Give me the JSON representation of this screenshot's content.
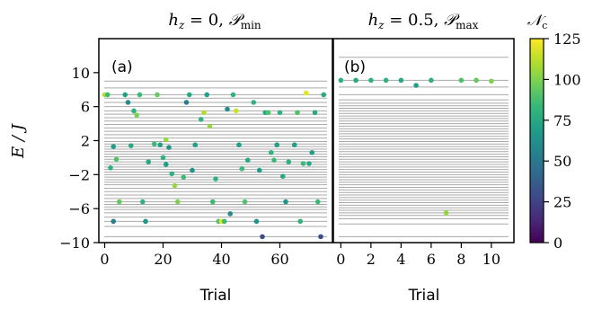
{
  "chart_data": [
    {
      "type": "scatter",
      "panel_label": "(a)",
      "title": "h_z = 0, 𝒫_min",
      "title_parts": {
        "h": "h",
        "z": "z",
        "eq": " = 0, ",
        "P": "𝒫",
        "sub": "min"
      },
      "xlabel": "Trial",
      "ylabel": "E / J",
      "xlim": [
        -2,
        78
      ],
      "ylim": [
        -10,
        14
      ],
      "xticks": [
        "0",
        "20",
        "40",
        "60"
      ],
      "yticks": [
        "10",
        "6",
        "2",
        "−2",
        "−6",
        "−10"
      ],
      "ytick_values": [
        10,
        6,
        2,
        -2,
        -6,
        -10
      ],
      "xtick_values": [
        0,
        20,
        40,
        60
      ],
      "levels": [
        -9.3,
        -8.1,
        -7.5,
        -7.0,
        -6.5,
        -6.1,
        -5.8,
        -5.5,
        -5.2,
        -4.8,
        -4.4,
        -4.0,
        -3.6,
        -3.2,
        -2.9,
        -2.6,
        -2.3,
        -2.0,
        -1.7,
        -1.4,
        -1.1,
        -0.8,
        -0.5,
        -0.2,
        0.1,
        0.4,
        0.7,
        1.0,
        1.3,
        1.6,
        1.9,
        2.3,
        2.7,
        3.1,
        3.5,
        3.9,
        4.3,
        4.7,
        5.1,
        5.5,
        6.0,
        6.5,
        7.0,
        7.4,
        8.2,
        9.0
      ],
      "points": [
        {
          "x": 0,
          "y": 7.4,
          "c": 110
        },
        {
          "x": 1,
          "y": 7.4,
          "c": 85
        },
        {
          "x": 2,
          "y": -1.2,
          "c": 80
        },
        {
          "x": 3,
          "y": 1.3,
          "c": 70
        },
        {
          "x": 3,
          "y": -7.5,
          "c": 55
        },
        {
          "x": 4,
          "y": -0.2,
          "c": 90
        },
        {
          "x": 5,
          "y": -5.2,
          "c": 95
        },
        {
          "x": 7,
          "y": 7.4,
          "c": 70
        },
        {
          "x": 8,
          "y": 6.5,
          "c": 60
        },
        {
          "x": 9,
          "y": 1.4,
          "c": 75
        },
        {
          "x": 10,
          "y": 5.5,
          "c": 80
        },
        {
          "x": 11,
          "y": 5.0,
          "c": 100
        },
        {
          "x": 12,
          "y": 7.4,
          "c": 85
        },
        {
          "x": 13,
          "y": -5.2,
          "c": 80
        },
        {
          "x": 14,
          "y": -7.5,
          "c": 65
        },
        {
          "x": 15,
          "y": -0.5,
          "c": 75
        },
        {
          "x": 17,
          "y": 1.6,
          "c": 85
        },
        {
          "x": 18,
          "y": 7.4,
          "c": 95
        },
        {
          "x": 19,
          "y": 1.5,
          "c": 70
        },
        {
          "x": 20,
          "y": 0.0,
          "c": 80
        },
        {
          "x": 21,
          "y": 2.1,
          "c": 105
        },
        {
          "x": 21,
          "y": -0.8,
          "c": 70
        },
        {
          "x": 22,
          "y": 1.2,
          "c": 65
        },
        {
          "x": 23,
          "y": -1.9,
          "c": 80
        },
        {
          "x": 24,
          "y": -3.3,
          "c": 105
        },
        {
          "x": 25,
          "y": -5.2,
          "c": 100
        },
        {
          "x": 27,
          "y": -2.3,
          "c": 85
        },
        {
          "x": 28,
          "y": 6.5,
          "c": 55
        },
        {
          "x": 29,
          "y": 7.4,
          "c": 75
        },
        {
          "x": 30,
          "y": -1.5,
          "c": 65
        },
        {
          "x": 31,
          "y": 1.5,
          "c": 70
        },
        {
          "x": 33,
          "y": 4.5,
          "c": 80
        },
        {
          "x": 34,
          "y": 5.3,
          "c": 110
        },
        {
          "x": 35,
          "y": 7.4,
          "c": 70
        },
        {
          "x": 36,
          "y": 3.7,
          "c": 105
        },
        {
          "x": 37,
          "y": -5.2,
          "c": 85
        },
        {
          "x": 38,
          "y": -2.5,
          "c": 80
        },
        {
          "x": 39,
          "y": -7.5,
          "c": 90
        },
        {
          "x": 40,
          "y": -7.5,
          "c": 120
        },
        {
          "x": 41,
          "y": -7.5,
          "c": 85
        },
        {
          "x": 42,
          "y": 5.7,
          "c": 60
        },
        {
          "x": 43,
          "y": -6.6,
          "c": 60
        },
        {
          "x": 44,
          "y": 7.4,
          "c": 80
        },
        {
          "x": 45,
          "y": 5.5,
          "c": 115
        },
        {
          "x": 46,
          "y": 1.5,
          "c": 70
        },
        {
          "x": 47,
          "y": -1.3,
          "c": 85
        },
        {
          "x": 48,
          "y": -5.2,
          "c": 90
        },
        {
          "x": 49,
          "y": -0.3,
          "c": 75
        },
        {
          "x": 51,
          "y": 6.5,
          "c": 80
        },
        {
          "x": 52,
          "y": -7.5,
          "c": 65
        },
        {
          "x": 53,
          "y": -1.5,
          "c": 70
        },
        {
          "x": 54,
          "y": -9.3,
          "c": 30
        },
        {
          "x": 55,
          "y": 5.3,
          "c": 75
        },
        {
          "x": 56,
          "y": 5.3,
          "c": 90
        },
        {
          "x": 57,
          "y": 0.6,
          "c": 80
        },
        {
          "x": 58,
          "y": -0.3,
          "c": 85
        },
        {
          "x": 59,
          "y": 1.5,
          "c": 70
        },
        {
          "x": 60,
          "y": 5.3,
          "c": 80
        },
        {
          "x": 61,
          "y": -2.2,
          "c": 75
        },
        {
          "x": 62,
          "y": -5.2,
          "c": 65
        },
        {
          "x": 63,
          "y": -0.5,
          "c": 80
        },
        {
          "x": 65,
          "y": 1.5,
          "c": 70
        },
        {
          "x": 66,
          "y": 5.3,
          "c": 90
        },
        {
          "x": 67,
          "y": -7.5,
          "c": 80
        },
        {
          "x": 68,
          "y": -0.7,
          "c": 85
        },
        {
          "x": 69,
          "y": 7.6,
          "c": 120
        },
        {
          "x": 70,
          "y": -0.7,
          "c": 75
        },
        {
          "x": 71,
          "y": 0.6,
          "c": 70
        },
        {
          "x": 72,
          "y": 5.3,
          "c": 75
        },
        {
          "x": 73,
          "y": -5.2,
          "c": 85
        },
        {
          "x": 74,
          "y": -9.3,
          "c": 30
        },
        {
          "x": 75,
          "y": 7.4,
          "c": 75
        }
      ]
    },
    {
      "type": "scatter",
      "panel_label": "(b)",
      "title": "h_z = 0.5, 𝒫_max",
      "title_parts": {
        "h": "h",
        "z": "z",
        "eq": " = 0.5, ",
        "P": "𝒫",
        "sub": "max"
      },
      "xlabel": "Trial",
      "xlim": [
        -0.5,
        11.5
      ],
      "ylim": [
        -10,
        14
      ],
      "xticks": [
        "0",
        "2",
        "4",
        "6",
        "8",
        "10"
      ],
      "xtick_values": [
        0,
        2,
        4,
        6,
        8,
        10
      ],
      "levels": [
        -9.3,
        -7.8,
        -7.2,
        -6.8,
        -6.5,
        -6.2,
        -5.9,
        -5.6,
        -5.3,
        -5.0,
        -4.7,
        -4.4,
        -4.1,
        -3.8,
        -3.5,
        -3.2,
        -2.9,
        -2.6,
        -2.3,
        -2.0,
        -1.7,
        -1.4,
        -1.1,
        -0.8,
        -0.5,
        -0.2,
        0.1,
        0.4,
        0.7,
        1.0,
        1.3,
        1.6,
        1.9,
        2.2,
        2.5,
        2.8,
        3.1,
        3.4,
        3.7,
        4.0,
        4.3,
        4.6,
        4.9,
        5.2,
        5.5,
        5.8,
        6.1,
        6.4,
        6.8,
        7.4,
        8.3,
        9.1,
        11.8
      ],
      "points": [
        {
          "x": 0,
          "y": 9.1,
          "c": 80
        },
        {
          "x": 1,
          "y": 9.1,
          "c": 75
        },
        {
          "x": 2,
          "y": 9.1,
          "c": 80
        },
        {
          "x": 3,
          "y": 9.1,
          "c": 80
        },
        {
          "x": 4,
          "y": 9.1,
          "c": 75
        },
        {
          "x": 5,
          "y": 8.5,
          "c": 70
        },
        {
          "x": 6,
          "y": 9.1,
          "c": 80
        },
        {
          "x": 7,
          "y": -6.5,
          "c": 105
        },
        {
          "x": 8,
          "y": 9.1,
          "c": 90
        },
        {
          "x": 9,
          "y": 9.1,
          "c": 95
        },
        {
          "x": 10,
          "y": 9.0,
          "c": 100
        }
      ]
    }
  ],
  "colorbar": {
    "label": "𝒩_c",
    "label_parts": {
      "N": "𝒩",
      "sub": "c"
    },
    "range": [
      0,
      125
    ],
    "ticks": [
      "125",
      "100",
      "75",
      "50",
      "25",
      "0"
    ],
    "tick_values": [
      125,
      100,
      75,
      50,
      25,
      0
    ],
    "colormap": "viridis",
    "stops": [
      "#440154",
      "#482878",
      "#3e4989",
      "#31688e",
      "#26828e",
      "#1f9e89",
      "#35b779",
      "#6ece58",
      "#b5de2b",
      "#fde725"
    ]
  },
  "level_color": "#a9a9a9"
}
